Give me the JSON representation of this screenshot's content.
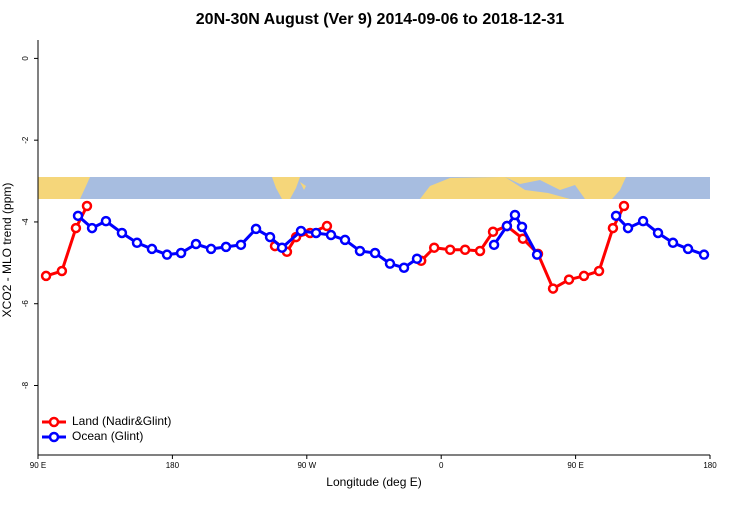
{
  "chart_data": {
    "type": "line",
    "title": "20N-30N August (Ver 9)   2014-09-06 to 2018-12-31",
    "x_label": "Longitude (deg E)",
    "y_label": "XCO2 - MLO trend (ppm)",
    "xlim": [
      90,
      540
    ],
    "ylim": [
      -9.7,
      0.45
    ],
    "xticks": [
      {
        "value": 90,
        "label": "90 E"
      },
      180,
      {
        "value": 270,
        "label": "90 W"
      },
      {
        "value": 360,
        "label": "0"
      },
      {
        "value": 450,
        "label": "90 E"
      },
      {
        "value": 540,
        "label": "180"
      }
    ],
    "yticks": [
      0,
      -2,
      -4,
      -6,
      -8
    ],
    "legend": "bottom-left",
    "series": [
      {
        "name": "Land (Nadir&Glint)",
        "color": "#ff0000",
        "x": [
          95.4,
          106,
          115.4,
          122.8,
          null,
          248.7,
          256.7,
          262.8,
          272.2,
          283.5,
          null,
          346.6,
          355.3,
          366,
          376,
          386,
          394.7,
          404,
          414.7,
          424.8,
          434.9,
          445.6,
          455.6,
          465.7,
          475,
          482.4
        ],
        "values": [
          -5.32,
          -5.2,
          -4.15,
          -3.61,
          null,
          -4.59,
          -4.73,
          -4.37,
          -4.27,
          -4.1,
          null,
          -4.95,
          -4.63,
          -4.68,
          -4.68,
          -4.71,
          -4.24,
          -4.1,
          -4.41,
          -4.78,
          -5.63,
          -5.41,
          -5.32,
          -5.2,
          -4.15,
          -3.61
        ]
      },
      {
        "name": "Ocean (Glint)",
        "color": "#0000ff",
        "x": [
          116.8,
          126.2,
          135.5,
          146.2,
          156.3,
          166.3,
          176.4,
          185.8,
          195.8,
          205.9,
          215.9,
          225.9,
          236,
          245.4,
          253.4,
          266.1,
          276.2,
          286.2,
          295.6,
          305.6,
          315.7,
          325.7,
          335.1,
          343.8,
          null,
          395.4,
          404,
          409.4,
          414.1,
          424.2,
          null,
          477.1,
          485.1,
          495.2,
          505.2,
          515.2,
          525.3,
          536
        ],
        "values": [
          -3.85,
          -4.15,
          -3.98,
          -4.27,
          -4.51,
          -4.66,
          -4.8,
          -4.76,
          -4.54,
          -4.66,
          -4.61,
          -4.56,
          -4.17,
          -4.37,
          -4.63,
          -4.22,
          -4.27,
          -4.32,
          -4.44,
          -4.71,
          -4.76,
          -5.02,
          -5.12,
          -4.9,
          null,
          -4.56,
          -4.1,
          -3.83,
          -4.12,
          -4.8,
          null,
          -3.85,
          -4.15,
          -3.98,
          -4.27,
          -4.51,
          -4.66,
          -4.8
        ]
      }
    ]
  }
}
